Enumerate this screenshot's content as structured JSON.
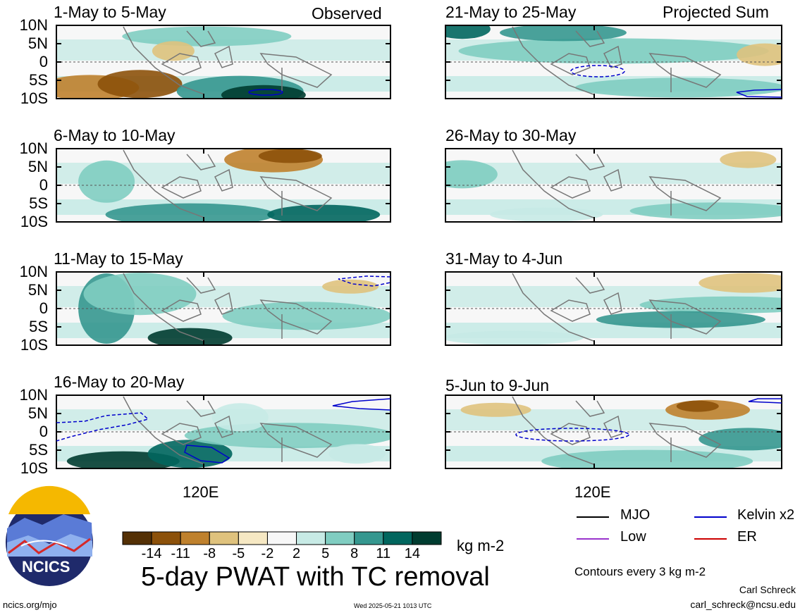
{
  "panels_left": [
    {
      "title": "1-May to 5-May",
      "tag": "Observed"
    },
    {
      "title": "6-May to 10-May",
      "tag": ""
    },
    {
      "title": "11-May to 15-May",
      "tag": ""
    },
    {
      "title": "16-May to 20-May",
      "tag": ""
    }
  ],
  "panels_right": [
    {
      "title": "21-May to 25-May",
      "tag": "Projected Sum"
    },
    {
      "title": "26-May to 30-May",
      "tag": ""
    },
    {
      "title": "31-May to 4-Jun",
      "tag": ""
    },
    {
      "title": "5-Jun to 9-Jun",
      "tag": ""
    }
  ],
  "lat_labels": [
    "10N",
    "5N",
    "0",
    "5S",
    "10S"
  ],
  "lon_label": "120E",
  "colorbar": {
    "ticks": [
      "-14",
      "-11",
      "-8",
      "-5",
      "-2",
      "2",
      "5",
      "8",
      "11",
      "14"
    ],
    "units": "kg m-2",
    "colors": [
      "#543005",
      "#8c510a",
      "#bf812d",
      "#dfc27d",
      "#f6e8c3",
      "#f7f7f7",
      "#c7eae5",
      "#80cdc1",
      "#35978f",
      "#01665e",
      "#003c30"
    ]
  },
  "main_title": "5-day PWAT with TC removal",
  "legend": {
    "items": [
      {
        "label": "MJO",
        "color": "#000000"
      },
      {
        "label": "Kelvin x2",
        "color": "#0000cc"
      },
      {
        "label": "Low",
        "color": "#9933cc"
      },
      {
        "label": "ER",
        "color": "#cc0000"
      }
    ],
    "note": "Contours every 3 kg m-2"
  },
  "logo_text": "NCICS",
  "footer": {
    "site": "ncics.org/mjo",
    "timestamp": "Wed 2025-05-21 1013 UTC",
    "author": "Carl Schreck",
    "email": "carl_schreck@ncsu.edu"
  }
}
